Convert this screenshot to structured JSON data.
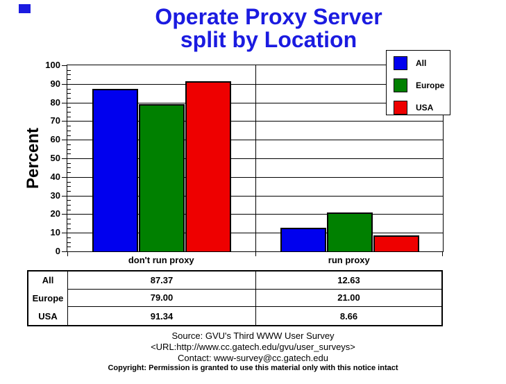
{
  "slide": {
    "bullet_color": "#1b1be0"
  },
  "title": {
    "line1": "Operate Proxy Server",
    "line2": "split by Location",
    "color": "#1b1be0"
  },
  "chart_data": {
    "type": "bar",
    "title": "Operate Proxy Server split by Location",
    "categories": [
      "don't run proxy",
      "run proxy"
    ],
    "series": [
      {
        "name": "All",
        "color": "#0000ee",
        "values": [
          87.37,
          12.63
        ]
      },
      {
        "name": "Europe",
        "color": "#008000",
        "values": [
          79.0,
          21.0
        ]
      },
      {
        "name": "USA",
        "color": "#ee0000",
        "values": [
          91.34,
          8.66
        ]
      }
    ],
    "xlabel": "",
    "ylabel": "Percent",
    "ylim": [
      0,
      100
    ],
    "y_major_ticks": [
      100,
      90,
      80,
      70,
      60,
      50,
      40,
      30,
      20,
      10,
      0
    ],
    "y_minor_step": 2.5,
    "grid": "horizontal",
    "legend_position": "top-right"
  },
  "legend": {
    "items": [
      {
        "label": "All"
      },
      {
        "label": "Europe"
      },
      {
        "label": "USA"
      }
    ]
  },
  "table": {
    "row_labels": [
      "All",
      "Europe",
      "USA"
    ],
    "columns": [
      "don't run proxy",
      "run proxy"
    ],
    "rows": [
      [
        "87.37",
        "12.63"
      ],
      [
        "79.00",
        "21.00"
      ],
      [
        "91.34",
        "8.66"
      ]
    ]
  },
  "footer": {
    "source": "Source: GVU's Third WWW User Survey",
    "url": "<URL:http://www.cc.gatech.edu/gvu/user_surveys>",
    "contact": "Contact: www-survey@cc.gatech.edu",
    "copyright": "Copyright: Permission is granted to use this material only with this notice intact"
  }
}
